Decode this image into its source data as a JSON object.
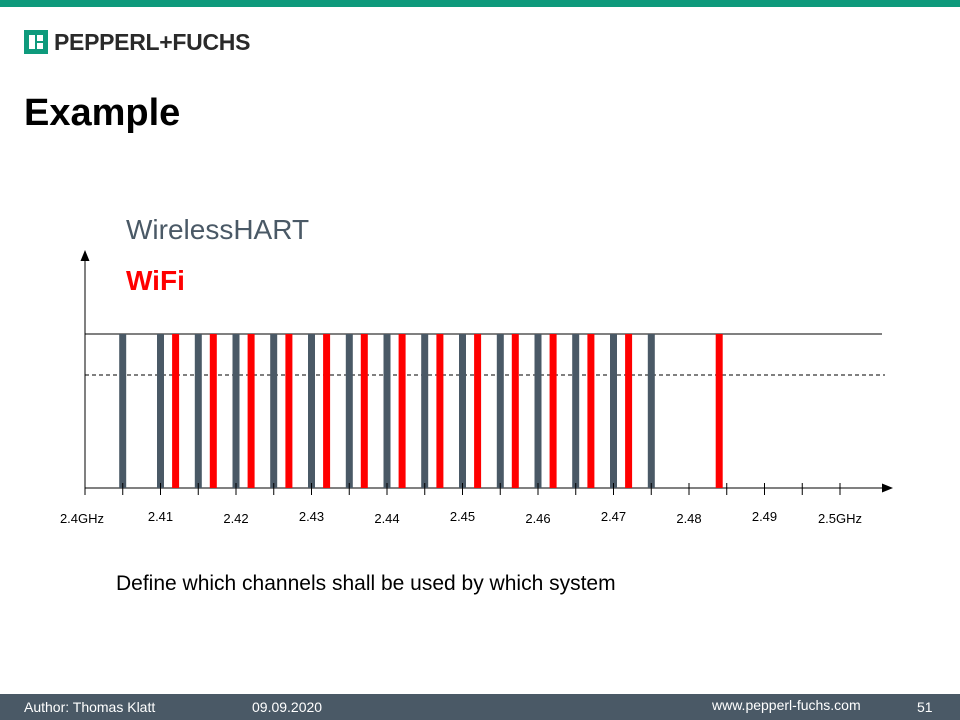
{
  "header": {
    "logo_text": "PEPPERL+FUCHS"
  },
  "slide": {
    "title": "Example",
    "caption": "Define which channels shall be used by which system"
  },
  "chart_data": {
    "type": "bar",
    "legend": {
      "placement": "top-left",
      "entries": [
        {
          "label": "WirelessHART",
          "color": "#4a5966"
        },
        {
          "label": "WiFi",
          "color": "#ff0000"
        }
      ]
    },
    "xlim": [
      2.4,
      2.5
    ],
    "x_ticks": [
      2.4,
      2.405,
      2.41,
      2.415,
      2.42,
      2.425,
      2.43,
      2.435,
      2.44,
      2.445,
      2.45,
      2.455,
      2.46,
      2.465,
      2.47,
      2.475,
      2.48,
      2.485,
      2.49,
      2.495,
      2.5
    ],
    "x_tick_labels": [
      {
        "x": 2.4,
        "label": "2.4GHz"
      },
      {
        "x": 2.41,
        "label": "2.41"
      },
      {
        "x": 2.42,
        "label": "2.42"
      },
      {
        "x": 2.43,
        "label": "2.43"
      },
      {
        "x": 2.44,
        "label": "2.44"
      },
      {
        "x": 2.45,
        "label": "2.45"
      },
      {
        "x": 2.46,
        "label": "2.46"
      },
      {
        "x": 2.47,
        "label": "2.47"
      },
      {
        "x": 2.48,
        "label": "2.48"
      },
      {
        "x": 2.49,
        "label": "2.49"
      },
      {
        "x": 2.5,
        "label": "2.5GHz"
      }
    ],
    "series": [
      {
        "name": "WirelessHART",
        "color": "#4a5966",
        "x": [
          2.405,
          2.41,
          2.415,
          2.42,
          2.425,
          2.43,
          2.435,
          2.44,
          2.445,
          2.45,
          2.455,
          2.46,
          2.465,
          2.47,
          2.475
        ],
        "values": [
          1,
          1,
          1,
          1,
          1,
          1,
          1,
          1,
          1,
          1,
          1,
          1,
          1,
          1,
          1
        ]
      },
      {
        "name": "WiFi",
        "color": "#ff0000",
        "x": [
          2.412,
          2.417,
          2.422,
          2.427,
          2.432,
          2.437,
          2.442,
          2.447,
          2.452,
          2.457,
          2.462,
          2.467,
          2.472,
          2.484
        ],
        "values": [
          1,
          1,
          1,
          1,
          1,
          1,
          1,
          1,
          1,
          1,
          1,
          1,
          1,
          1
        ]
      }
    ],
    "grid": false
  },
  "footer": {
    "author": "Author:  Thomas Klatt",
    "date": "09.09.2020",
    "url": "www.pepperl-fuchs.com",
    "page": "51"
  }
}
